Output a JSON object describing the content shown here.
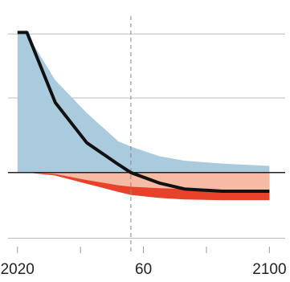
{
  "chart_data": {
    "type": "area",
    "x": [
      2020,
      2023,
      2032,
      2042,
      2052,
      2056,
      2065,
      2073,
      2085,
      2100
    ],
    "series": [
      {
        "color": "#e8432a",
        "values": [
          0,
          0,
          -0.04,
          -0.15,
          -0.26,
          -0.3,
          -0.34,
          -0.36,
          -0.37,
          -0.37
        ]
      },
      {
        "color": "#f5bba4",
        "values": [
          0,
          0,
          -0.02,
          -0.1,
          -0.17,
          -0.19,
          -0.21,
          -0.22,
          -0.23,
          -0.23
        ]
      },
      {
        "color": "#aacbde",
        "values": [
          1.86,
          1.86,
          1.24,
          0.8,
          0.42,
          0.35,
          0.22,
          0.16,
          0.12,
          0.09
        ]
      }
    ],
    "line": {
      "color": "#111111",
      "values": [
        1.88,
        1.88,
        0.94,
        0.4,
        0.11,
        0,
        -0.14,
        -0.22,
        -0.25,
        -0.25
      ]
    },
    "vline_x": 2056,
    "xlim": [
      2017,
      2105
    ],
    "ylim": [
      -1.08,
      2.1
    ],
    "xticks": [
      2020,
      {
        "value": 2060,
        "label": "60"
      },
      2100
    ],
    "xminor_ticks": [
      2040,
      2080
    ],
    "yticks": [
      -0.88,
      0,
      1,
      1.86
    ],
    "grid": true
  }
}
